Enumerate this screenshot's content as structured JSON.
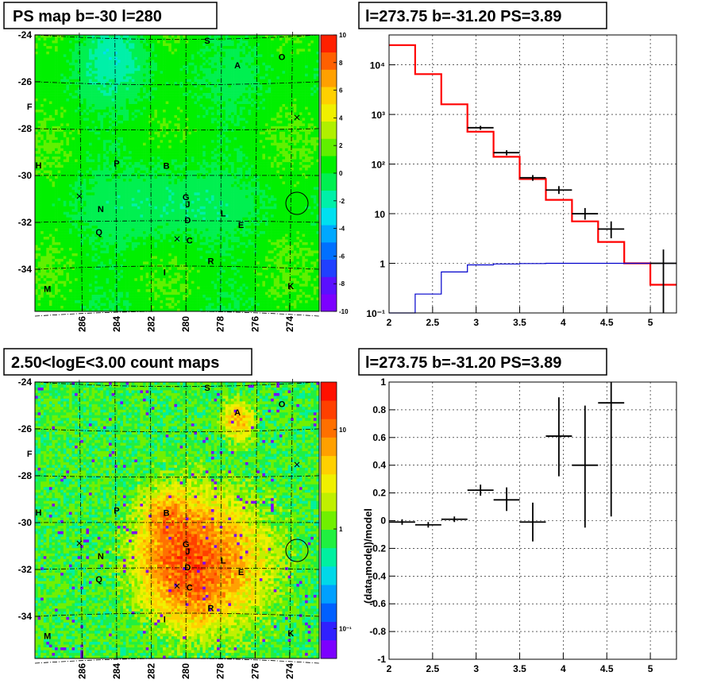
{
  "panels": {
    "ps_map": {
      "title": "PS map b=-30 l=280",
      "y_ticks": [
        "-24",
        "-26",
        "-28",
        "-30",
        "-32",
        "-34"
      ],
      "x_ticks": [
        "286",
        "284",
        "282",
        "280",
        "278",
        "276",
        "274"
      ],
      "palette_ticks": [
        "10",
        "8",
        "6",
        "4",
        "2",
        "0",
        "-2",
        "-4",
        "-6",
        "-8",
        "-10"
      ]
    },
    "count_map": {
      "title": "2.50<logE<3.00 count maps",
      "y_ticks": [
        "-24",
        "-26",
        "-28",
        "-30",
        "-32",
        "-34"
      ],
      "x_ticks": [
        "286",
        "284",
        "282",
        "280",
        "278",
        "276",
        "274"
      ],
      "palette_ticks": [
        "10",
        "1",
        "10⁻¹"
      ]
    },
    "spectrum": {
      "title": "l=273.75 b=-31.20 PS=3.89",
      "x_ticks": [
        "2",
        "2.5",
        "3",
        "3.5",
        "4",
        "4.5",
        "5"
      ],
      "y_ticks": [
        "10⁴",
        "10³",
        "10²",
        "10",
        "1",
        "10⁻¹"
      ]
    },
    "residual": {
      "title": "l=273.75 b=-31.20 PS=3.89",
      "ylabel": "(data-model)/model",
      "x_ticks": [
        "2",
        "2.5",
        "3",
        "3.5",
        "4",
        "4.5",
        "5"
      ],
      "y_ticks": [
        "1",
        "0.8",
        "0.6",
        "0.4",
        "0.2",
        "0",
        "-0.2",
        "-0.4",
        "-0.6",
        "-0.8",
        "-1"
      ]
    }
  },
  "sources": [
    {
      "label": "S",
      "l": 278.8,
      "b": -24.2
    },
    {
      "label": "A",
      "l": 277.1,
      "b": -25.3
    },
    {
      "label": "O",
      "l": 274.6,
      "b": -25.0
    },
    {
      "label": "F",
      "l": 288.8,
      "b": -27.2
    },
    {
      "label": "H",
      "l": 288.3,
      "b": -29.7
    },
    {
      "label": "P",
      "l": 283.9,
      "b": -29.6
    },
    {
      "label": "B",
      "l": 281.1,
      "b": -29.7
    },
    {
      "label": "G",
      "l": 280.0,
      "b": -31.1
    },
    {
      "label": "J",
      "l": 279.9,
      "b": -31.4
    },
    {
      "label": "N",
      "l": 284.8,
      "b": -31.6
    },
    {
      "label": "L",
      "l": 277.9,
      "b": -31.8
    },
    {
      "label": "D",
      "l": 279.9,
      "b": -32.1
    },
    {
      "label": "E",
      "l": 276.9,
      "b": -32.3
    },
    {
      "label": "Q",
      "l": 284.9,
      "b": -32.6
    },
    {
      "label": "C",
      "l": 279.8,
      "b": -33.0
    },
    {
      "label": "R",
      "l": 278.6,
      "b": -33.9
    },
    {
      "label": "I",
      "l": 281.2,
      "b": -34.4
    },
    {
      "label": "M",
      "l": 287.8,
      "b": -35.0
    },
    {
      "label": "K",
      "l": 274.1,
      "b": -34.9
    }
  ],
  "cross_markers": [
    {
      "l": 273.75,
      "b": -27.5
    },
    {
      "l": 286.0,
      "b": -30.9
    },
    {
      "l": 280.5,
      "b": -32.8
    }
  ],
  "circle_marker": {
    "l": 273.75,
    "b": -31.2
  },
  "chart_data": [
    {
      "type": "heatmap",
      "name_in_image": "PS map b=-30 l=280",
      "title": "PS map b=-30 l=280",
      "xlim": [
        288.5,
        272.5
      ],
      "ylim": [
        -36,
        -23.8
      ],
      "z_range": [
        -10,
        10
      ],
      "z_ticks": [
        10,
        8,
        6,
        4,
        2,
        0,
        -2,
        -4,
        -6,
        -8,
        -10
      ],
      "grid": true,
      "palette": [
        "#7c00ff",
        "#5a10ff",
        "#2040ff",
        "#0070ff",
        "#00a8ff",
        "#00e0f0",
        "#00f0a8",
        "#00f050",
        "#00f000",
        "#60f000",
        "#b0f000",
        "#f0f000",
        "#ffd000",
        "#ffa000",
        "#ff6000",
        "#ff2000"
      ]
    },
    {
      "type": "line",
      "title": "l=273.75 b=-31.20 PS=3.89",
      "xlim": [
        2,
        5.3
      ],
      "ylim": [
        0.1,
        40000
      ],
      "yscale": "log",
      "grid": true,
      "series": [
        {
          "color": "#ff0000",
          "edges": [
            2,
            2.3,
            2.6,
            2.9,
            3.2,
            3.5,
            3.8,
            4.1,
            4.4,
            4.7,
            5.0,
            5.3
          ],
          "values": [
            25000,
            6500,
            1600,
            450,
            140,
            50,
            19,
            7,
            2.7,
            1.0,
            0.37
          ]
        },
        {
          "color": "#0000cc",
          "edges": [
            2,
            2.3,
            2.6,
            2.9,
            3.2,
            3.5,
            3.8,
            4.1,
            4.4,
            4.7,
            5.0,
            5.3
          ],
          "values": [
            0.07,
            0.24,
            0.67,
            0.93,
            0.97,
            0.99,
            1.0,
            1.0,
            1.0,
            1.0,
            1.0
          ]
        },
        {
          "color": "#000000",
          "points": [
            {
              "x": 3.05,
              "y": 540,
              "xerr": 0.15,
              "ylo": 490,
              "yhi": 590
            },
            {
              "x": 3.35,
              "y": 170,
              "xerr": 0.15,
              "ylo": 150,
              "yhi": 190
            },
            {
              "x": 3.65,
              "y": 53,
              "xerr": 0.15,
              "ylo": 46,
              "yhi": 60
            },
            {
              "x": 3.95,
              "y": 30,
              "xerr": 0.15,
              "ylo": 25,
              "yhi": 36
            },
            {
              "x": 4.25,
              "y": 10,
              "xerr": 0.15,
              "ylo": 7.6,
              "yhi": 13
            },
            {
              "x": 4.55,
              "y": 4.9,
              "xerr": 0.15,
              "ylo": 3.2,
              "yhi": 7.0
            },
            {
              "x": 5.15,
              "y": 1.0,
              "xerr": 0.15,
              "ylo": 0.1,
              "yhi": 1.9
            }
          ]
        }
      ]
    },
    {
      "type": "heatmap",
      "title": "2.50<logE<3.00 count maps",
      "xlim": [
        288.5,
        272.5
      ],
      "ylim": [
        -36,
        -23.8
      ],
      "z_scale": "log",
      "z_range": [
        0.05,
        30
      ],
      "grid": true,
      "palette": [
        "#7c00ff",
        "#3020ff",
        "#0060ff",
        "#00a0ff",
        "#00d8e8",
        "#00f0a0",
        "#20f040",
        "#70f000",
        "#c0f000",
        "#f0f000",
        "#ffd000",
        "#ffa000",
        "#ff7000",
        "#ff4000",
        "#ff1000"
      ]
    },
    {
      "type": "scatter",
      "title": "l=273.75 b=-31.20 PS=3.89",
      "ylabel": "(data-model)/model",
      "xlim": [
        2,
        5.3
      ],
      "ylim": [
        -1,
        1
      ],
      "grid": true,
      "series": [
        {
          "color": "#000000",
          "points": [
            {
              "x": 2.15,
              "y": -0.01,
              "xerr": 0.15,
              "ylo": -0.03,
              "yhi": 0.01
            },
            {
              "x": 2.45,
              "y": -0.03,
              "xerr": 0.15,
              "ylo": -0.05,
              "yhi": -0.01
            },
            {
              "x": 2.75,
              "y": 0.01,
              "xerr": 0.15,
              "ylo": -0.01,
              "yhi": 0.03
            },
            {
              "x": 3.05,
              "y": 0.22,
              "xerr": 0.15,
              "ylo": 0.18,
              "yhi": 0.26
            },
            {
              "x": 3.35,
              "y": 0.15,
              "xerr": 0.15,
              "ylo": 0.07,
              "yhi": 0.24
            },
            {
              "x": 3.65,
              "y": -0.01,
              "xerr": 0.15,
              "ylo": -0.15,
              "yhi": 0.13
            },
            {
              "x": 3.95,
              "y": 0.61,
              "xerr": 0.15,
              "ylo": 0.32,
              "yhi": 0.89
            },
            {
              "x": 4.25,
              "y": 0.4,
              "xerr": 0.15,
              "ylo": -0.05,
              "yhi": 0.83
            },
            {
              "x": 4.55,
              "y": 0.85,
              "xerr": 0.15,
              "ylo": 0.03,
              "yhi": 1.0
            }
          ]
        }
      ]
    }
  ]
}
